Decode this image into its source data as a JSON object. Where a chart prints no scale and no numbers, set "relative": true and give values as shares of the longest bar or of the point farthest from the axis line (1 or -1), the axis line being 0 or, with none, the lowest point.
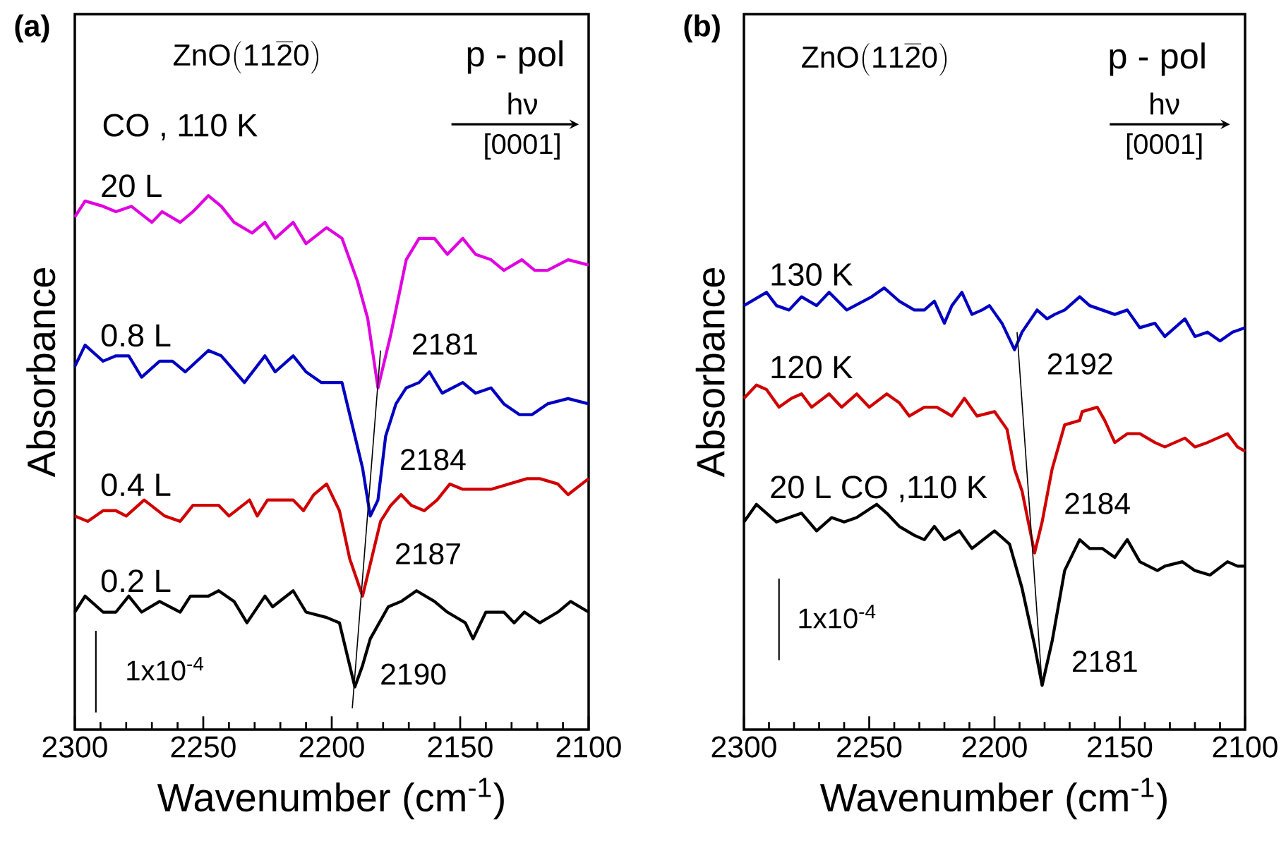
{
  "chart_data": [
    {
      "type": "line",
      "relative": true,
      "title": "(a)",
      "xlabel": "Wavenumber (cm$^{-1}$)",
      "ylabel": "Absorbance",
      "xlim": [
        2300,
        2100
      ],
      "xticks": [
        2300,
        2250,
        2200,
        2150,
        2100
      ],
      "series": [
        {
          "name": "20 L",
          "color": "#e000e0",
          "x": [
            2300,
            2296,
            2289,
            2284,
            2278,
            2270,
            2266,
            2259,
            2254,
            2248,
            2243,
            2238,
            2231,
            2226,
            2222,
            2215,
            2210,
            2202,
            2196,
            2190,
            2186,
            2182,
            2177,
            2171,
            2166,
            2160,
            2155,
            2149,
            2144,
            2138,
            2133,
            2126,
            2121,
            2116,
            2108,
            2100
          ],
          "values": [
            0.96,
            0.99,
            0.98,
            0.97,
            0.98,
            0.95,
            0.97,
            0.95,
            0.97,
            1.0,
            0.98,
            0.95,
            0.93,
            0.95,
            0.92,
            0.95,
            0.91,
            0.94,
            0.92,
            0.84,
            0.77,
            0.64,
            0.74,
            0.88,
            0.92,
            0.92,
            0.89,
            0.92,
            0.89,
            0.88,
            0.86,
            0.88,
            0.86,
            0.86,
            0.88,
            0.87
          ]
        },
        {
          "name": "0.8 L",
          "color": "#0000c0",
          "x": [
            2300,
            2296,
            2289,
            2284,
            2279,
            2274,
            2267,
            2262,
            2257,
            2248,
            2243,
            2234,
            2226,
            2222,
            2215,
            2210,
            2204,
            2196,
            2191,
            2188,
            2185,
            2182,
            2179,
            2175,
            2171,
            2166,
            2162,
            2157,
            2149,
            2144,
            2138,
            2133,
            2127,
            2122,
            2116,
            2108,
            2100
          ],
          "values": [
            0.68,
            0.72,
            0.69,
            0.7,
            0.7,
            0.66,
            0.69,
            0.69,
            0.67,
            0.71,
            0.7,
            0.65,
            0.7,
            0.67,
            0.7,
            0.67,
            0.65,
            0.65,
            0.55,
            0.49,
            0.4,
            0.43,
            0.55,
            0.61,
            0.64,
            0.65,
            0.67,
            0.63,
            0.65,
            0.63,
            0.64,
            0.61,
            0.59,
            0.59,
            0.61,
            0.62,
            0.61
          ]
        },
        {
          "name": "0.4 L",
          "color": "#d00000",
          "x": [
            2300,
            2295,
            2289,
            2284,
            2280,
            2273,
            2265,
            2259,
            2254,
            2248,
            2244,
            2240,
            2232,
            2229,
            2225,
            2215,
            2211,
            2207,
            2202,
            2197,
            2193,
            2188,
            2185,
            2181,
            2177,
            2173,
            2169,
            2164,
            2159,
            2154,
            2149,
            2144,
            2138,
            2131,
            2124,
            2119,
            2112,
            2108,
            2100
          ],
          "values": [
            0.4,
            0.39,
            0.41,
            0.41,
            0.4,
            0.43,
            0.4,
            0.39,
            0.42,
            0.42,
            0.42,
            0.4,
            0.43,
            0.4,
            0.43,
            0.43,
            0.41,
            0.44,
            0.46,
            0.41,
            0.32,
            0.25,
            0.31,
            0.39,
            0.42,
            0.44,
            0.42,
            0.41,
            0.43,
            0.46,
            0.45,
            0.45,
            0.45,
            0.46,
            0.47,
            0.47,
            0.46,
            0.44,
            0.47
          ]
        },
        {
          "name": "0.2 L",
          "color": "#000000",
          "x": [
            2300,
            2296,
            2289,
            2284,
            2279,
            2274,
            2267,
            2259,
            2255,
            2248,
            2244,
            2238,
            2233,
            2226,
            2223,
            2215,
            2210,
            2202,
            2197,
            2193,
            2191,
            2188,
            2185,
            2178,
            2173,
            2167,
            2160,
            2155,
            2148,
            2145,
            2140,
            2133,
            2129,
            2125,
            2119,
            2112,
            2107,
            2100
          ],
          "values": [
            0.22,
            0.25,
            0.22,
            0.22,
            0.25,
            0.22,
            0.24,
            0.22,
            0.25,
            0.25,
            0.26,
            0.24,
            0.2,
            0.25,
            0.23,
            0.26,
            0.22,
            0.21,
            0.2,
            0.12,
            0.08,
            0.12,
            0.17,
            0.23,
            0.24,
            0.26,
            0.24,
            0.22,
            0.2,
            0.17,
            0.22,
            0.22,
            0.2,
            0.22,
            0.2,
            0.22,
            0.24,
            0.22
          ]
        },
        {
          "color": "#000000",
          "x": [
            2192,
            2181
          ],
          "values": [
            0.04,
            0.71
          ]
        }
      ],
      "annotations": [
        "\\mathrm{ZnO(11\\overline{2}0)}",
        "p - pol",
        "hν",
        "[0001]",
        "CO , 110 K",
        "1x10$^{-4}$",
        {
          "text": "2181",
          "x": 2182,
          "y": 0.64
        },
        {
          "text": "2184",
          "x": 2185,
          "y": 0.4
        },
        {
          "text": "2187",
          "x": 2188,
          "y": 0.25
        },
        {
          "text": "2190",
          "x": 2191,
          "y": 0.08
        }
      ]
    },
    {
      "type": "line",
      "relative": true,
      "title": "(b)",
      "xlabel": "Wavenumber (cm$^{-1}$)",
      "ylabel": "Absorbance",
      "xlim": [
        2300,
        2100
      ],
      "xticks": [
        2300,
        2250,
        2200,
        2150,
        2100
      ],
      "series": [
        {
          "name": "130 K",
          "color": "#0000c0",
          "x": [
            2300,
            2297,
            2291,
            2287,
            2282,
            2277,
            2271,
            2266,
            2259,
            2249,
            2244,
            2238,
            2232,
            2228,
            2224,
            2220,
            2217,
            2213,
            2209,
            2205,
            2202,
            2197,
            2192,
            2189,
            2183,
            2179,
            2176,
            2172,
            2166,
            2162,
            2157,
            2152,
            2147,
            2142,
            2136,
            2132,
            2124,
            2120,
            2115,
            2110,
            2105,
            2100
          ],
          "values": [
            0.96,
            0.97,
            0.99,
            0.96,
            0.95,
            0.98,
            0.96,
            0.99,
            0.95,
            0.98,
            1.0,
            0.97,
            0.95,
            0.95,
            0.97,
            0.92,
            0.96,
            0.99,
            0.94,
            0.95,
            0.96,
            0.92,
            0.86,
            0.9,
            0.95,
            0.93,
            0.94,
            0.95,
            0.98,
            0.96,
            0.95,
            0.94,
            0.95,
            0.91,
            0.92,
            0.89,
            0.93,
            0.89,
            0.9,
            0.88,
            0.9,
            0.91
          ]
        },
        {
          "name": "120 K",
          "color": "#d00000",
          "x": [
            2300,
            2295,
            2291,
            2286,
            2281,
            2277,
            2273,
            2266,
            2261,
            2255,
            2250,
            2243,
            2238,
            2234,
            2228,
            2223,
            2217,
            2212,
            2207,
            2200,
            2195,
            2192,
            2189,
            2184,
            2181,
            2177,
            2172,
            2166,
            2165,
            2159,
            2156,
            2152,
            2147,
            2142,
            2136,
            2132,
            2124,
            2120,
            2115,
            2107,
            2103,
            2100
          ],
          "values": [
            0.75,
            0.78,
            0.77,
            0.73,
            0.75,
            0.76,
            0.73,
            0.76,
            0.73,
            0.76,
            0.73,
            0.76,
            0.74,
            0.71,
            0.73,
            0.73,
            0.71,
            0.75,
            0.71,
            0.72,
            0.68,
            0.59,
            0.54,
            0.4,
            0.47,
            0.59,
            0.69,
            0.7,
            0.72,
            0.73,
            0.7,
            0.65,
            0.67,
            0.67,
            0.65,
            0.64,
            0.66,
            0.64,
            0.65,
            0.67,
            0.64,
            0.63
          ]
        },
        {
          "name": "20 L CO ,110 K",
          "color": "#000000",
          "x": [
            2300,
            2295,
            2291,
            2287,
            2282,
            2277,
            2271,
            2265,
            2260,
            2255,
            2247,
            2243,
            2238,
            2232,
            2228,
            2224,
            2220,
            2214,
            2209,
            2200,
            2194,
            2189,
            2184,
            2181,
            2177,
            2172,
            2166,
            2162,
            2157,
            2152,
            2147,
            2142,
            2135,
            2132,
            2125,
            2120,
            2114,
            2107,
            2103,
            2100
          ],
          "values": [
            0.47,
            0.51,
            0.49,
            0.47,
            0.48,
            0.49,
            0.45,
            0.48,
            0.47,
            0.48,
            0.51,
            0.49,
            0.46,
            0.44,
            0.43,
            0.46,
            0.43,
            0.45,
            0.41,
            0.45,
            0.42,
            0.32,
            0.19,
            0.1,
            0.2,
            0.36,
            0.43,
            0.41,
            0.41,
            0.39,
            0.43,
            0.38,
            0.36,
            0.37,
            0.38,
            0.36,
            0.35,
            0.38,
            0.37,
            0.37
          ]
        },
        {
          "color": "#000000",
          "x": [
            2191,
            2181
          ],
          "values": [
            0.9,
            0.1
          ]
        }
      ],
      "annotations": [
        "\\mathrm{ZnO(11\\overline{2}0)}",
        "p - pol",
        "hν",
        "[0001]",
        "1x10$^{-4}$",
        {
          "text": "2192",
          "x": 2192,
          "y": 0.86
        },
        {
          "text": "2184",
          "x": 2184,
          "y": 0.4
        },
        {
          "text": "2181",
          "x": 2181,
          "y": 0.1
        }
      ]
    }
  ]
}
